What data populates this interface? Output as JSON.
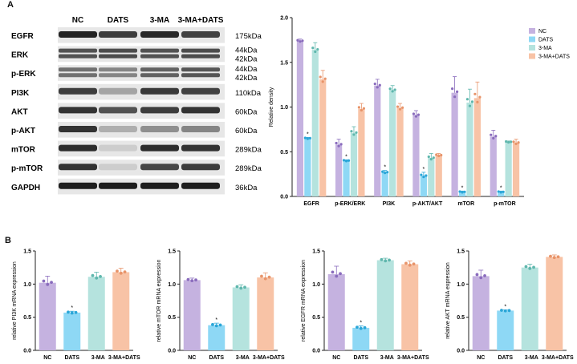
{
  "panel_labels": {
    "a": "A",
    "b": "B"
  },
  "blot": {
    "lanes": [
      "NC",
      "DATS",
      "3-MA",
      "3-MA+DATS"
    ],
    "rows": [
      {
        "label": "EGFR",
        "kda": [
          "175kDa"
        ],
        "intensity": [
          0.92,
          0.8,
          0.9,
          0.78
        ]
      },
      {
        "label": "ERK",
        "kda": [
          "44kDa",
          "42kDa"
        ],
        "intensity": [
          0.7,
          0.72,
          0.7,
          0.72
        ]
      },
      {
        "label": "p-ERK",
        "kda": [
          "44kDa",
          "42kDa"
        ],
        "intensity": [
          0.55,
          0.45,
          0.62,
          0.68
        ]
      },
      {
        "label": "PI3K",
        "kda": [
          "110kDa"
        ],
        "intensity": [
          0.8,
          0.3,
          0.82,
          0.78
        ]
      },
      {
        "label": "AKT",
        "kda": [
          "60kDa"
        ],
        "intensity": [
          0.85,
          0.7,
          0.8,
          0.85
        ]
      },
      {
        "label": "p-AKT",
        "kda": [
          "60kDa"
        ],
        "intensity": [
          0.85,
          0.25,
          0.4,
          0.45
        ]
      },
      {
        "label": "mTOR",
        "kda": [
          "289kDa"
        ],
        "intensity": [
          0.88,
          0.1,
          0.88,
          0.85
        ]
      },
      {
        "label": "p-mTOR",
        "kda": [
          "289kDa"
        ],
        "intensity": [
          0.85,
          0.1,
          0.75,
          0.8
        ]
      },
      {
        "label": "GAPDH",
        "kda": [
          "36kDa"
        ],
        "intensity": [
          0.95,
          0.95,
          0.95,
          0.95
        ]
      }
    ]
  },
  "colors": {
    "NC": "#c5b2e0",
    "DATS": "#8ed8f5",
    "3-MA": "#b5e3de",
    "3-MA+DATS": "#f8c3a6",
    "NC_pt": "#8a6cbd",
    "DATS_pt": "#2aa6d8",
    "3-MA_pt": "#5fb7ad",
    "3-MA+DATS_pt": "#e8946a"
  },
  "chart_data": [
    {
      "type": "bar",
      "ylabel": "Relative density",
      "ylim": [
        0,
        2.0
      ],
      "yticks": [
        "0.0",
        "0.5",
        "1.0",
        "1.5",
        "2.0"
      ],
      "categories": [
        "EGFR",
        "p-ERK/ERK",
        "PI3K",
        "p-AKT/AKT",
        "mTOR",
        "p-mTOR"
      ],
      "legend": "top-right",
      "series": [
        {
          "name": "NC",
          "values": [
            1.74,
            0.58,
            1.24,
            0.91,
            1.16,
            0.67
          ],
          "err": [
            0.02,
            0.06,
            0.07,
            0.05,
            0.18,
            0.07
          ]
        },
        {
          "name": "DATS",
          "values": [
            0.65,
            0.4,
            0.27,
            0.23,
            0.05,
            0.05
          ],
          "err": [
            0.01,
            0.01,
            0.02,
            0.04,
            0.01,
            0.01
          ]
        },
        {
          "name": "3-MA",
          "values": [
            1.64,
            0.71,
            1.19,
            0.43,
            1.05,
            0.61
          ],
          "err": [
            0.08,
            0.07,
            0.05,
            0.05,
            0.15,
            0.01
          ]
        },
        {
          "name": "3-MA+DATS",
          "values": [
            1.31,
            0.98,
            0.99,
            0.46,
            1.1,
            0.6
          ],
          "err": [
            0.1,
            0.06,
            0.05,
            0.02,
            0.18,
            0.04
          ]
        }
      ],
      "sig": [
        "*",
        "*",
        "*",
        "*",
        "*",
        "*"
      ]
    },
    {
      "type": "bar",
      "ylabel": "relative PI3K mRNA expression",
      "ylim": [
        0,
        1.5
      ],
      "yticks": [
        "0.0",
        "0.5",
        "1.0",
        "1.5"
      ],
      "categories": [
        "NC",
        "DATS",
        "3-MA",
        "3-MA+DATS"
      ],
      "values": [
        1.02,
        0.57,
        1.11,
        1.18
      ],
      "err": [
        0.1,
        0.02,
        0.07,
        0.06
      ],
      "sig": [
        "",
        "*",
        "",
        ""
      ]
    },
    {
      "type": "bar",
      "ylabel": "relative mTOR mRNA expression",
      "ylim": [
        0,
        1.5
      ],
      "yticks": [
        "0.0",
        "0.5",
        "1.0",
        "1.5"
      ],
      "categories": [
        "NC",
        "DATS",
        "3-MA",
        "3-MA+DATS"
      ],
      "values": [
        1.06,
        0.38,
        0.95,
        1.1
      ],
      "err": [
        0.03,
        0.03,
        0.04,
        0.07
      ],
      "sig": [
        "",
        "*",
        "",
        ""
      ]
    },
    {
      "type": "bar",
      "ylabel": "relative EGFR mRNA expression",
      "ylim": [
        0,
        1.5
      ],
      "yticks": [
        "0.0",
        "0.5",
        "1.0",
        "1.5"
      ],
      "categories": [
        "NC",
        "DATS",
        "3-MA",
        "3-MA+DATS"
      ],
      "values": [
        1.15,
        0.34,
        1.36,
        1.3
      ],
      "err": [
        0.12,
        0.03,
        0.03,
        0.05
      ],
      "sig": [
        "",
        "*",
        "",
        ""
      ]
    },
    {
      "type": "bar",
      "ylabel": "relative AKT mRNA expression",
      "ylim": [
        0,
        1.5
      ],
      "yticks": [
        "0.0",
        "0.5",
        "1.0",
        "1.5"
      ],
      "categories": [
        "NC",
        "DATS",
        "3-MA",
        "3-MA+DATS"
      ],
      "values": [
        1.12,
        0.6,
        1.25,
        1.41
      ],
      "err": [
        0.09,
        0.01,
        0.05,
        0.03
      ],
      "sig": [
        "",
        "*",
        "",
        ""
      ]
    }
  ]
}
